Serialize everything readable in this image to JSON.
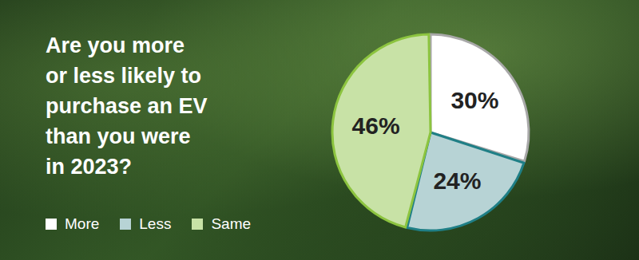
{
  "chart_data": {
    "type": "pie",
    "title": "Are you more or less likely to purchase an EV than you were in 2023?",
    "categories": [
      "More",
      "Less",
      "Same"
    ],
    "values": [
      30,
      24,
      46
    ],
    "value_labels": [
      "30%",
      "24%",
      "46%"
    ],
    "colors": [
      "#ffffff",
      "#b7d3d5",
      "#c8e2a6"
    ],
    "data_labels": true,
    "legend": "lower left"
  }
}
